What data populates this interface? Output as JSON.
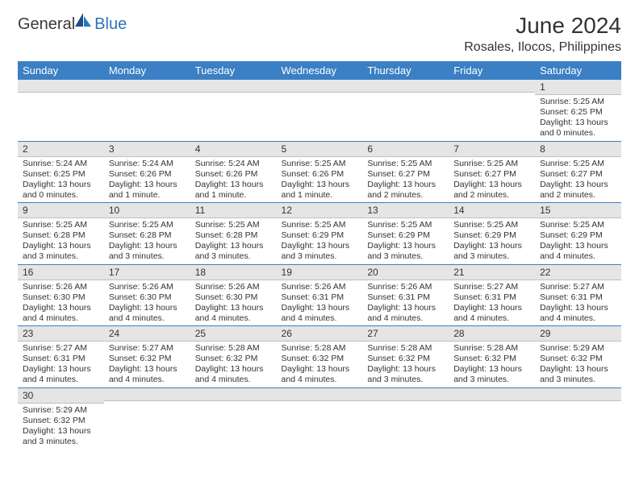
{
  "logo": {
    "part1": "General",
    "part2": "Blue"
  },
  "title": "June 2024",
  "location": "Rosales, Ilocos, Philippines",
  "header_bg": "#3b7fc4",
  "daynum_bg": "#e5e5e5",
  "border_color": "#3b7fc4",
  "weekdays": [
    "Sunday",
    "Monday",
    "Tuesday",
    "Wednesday",
    "Thursday",
    "Friday",
    "Saturday"
  ],
  "weeks": [
    [
      {
        "day": "",
        "sunrise": "",
        "sunset": "",
        "daylight": ""
      },
      {
        "day": "",
        "sunrise": "",
        "sunset": "",
        "daylight": ""
      },
      {
        "day": "",
        "sunrise": "",
        "sunset": "",
        "daylight": ""
      },
      {
        "day": "",
        "sunrise": "",
        "sunset": "",
        "daylight": ""
      },
      {
        "day": "",
        "sunrise": "",
        "sunset": "",
        "daylight": ""
      },
      {
        "day": "",
        "sunrise": "",
        "sunset": "",
        "daylight": ""
      },
      {
        "day": "1",
        "sunrise": "Sunrise: 5:25 AM",
        "sunset": "Sunset: 6:25 PM",
        "daylight": "Daylight: 13 hours and 0 minutes."
      }
    ],
    [
      {
        "day": "2",
        "sunrise": "Sunrise: 5:24 AM",
        "sunset": "Sunset: 6:25 PM",
        "daylight": "Daylight: 13 hours and 0 minutes."
      },
      {
        "day": "3",
        "sunrise": "Sunrise: 5:24 AM",
        "sunset": "Sunset: 6:26 PM",
        "daylight": "Daylight: 13 hours and 1 minute."
      },
      {
        "day": "4",
        "sunrise": "Sunrise: 5:24 AM",
        "sunset": "Sunset: 6:26 PM",
        "daylight": "Daylight: 13 hours and 1 minute."
      },
      {
        "day": "5",
        "sunrise": "Sunrise: 5:25 AM",
        "sunset": "Sunset: 6:26 PM",
        "daylight": "Daylight: 13 hours and 1 minute."
      },
      {
        "day": "6",
        "sunrise": "Sunrise: 5:25 AM",
        "sunset": "Sunset: 6:27 PM",
        "daylight": "Daylight: 13 hours and 2 minutes."
      },
      {
        "day": "7",
        "sunrise": "Sunrise: 5:25 AM",
        "sunset": "Sunset: 6:27 PM",
        "daylight": "Daylight: 13 hours and 2 minutes."
      },
      {
        "day": "8",
        "sunrise": "Sunrise: 5:25 AM",
        "sunset": "Sunset: 6:27 PM",
        "daylight": "Daylight: 13 hours and 2 minutes."
      }
    ],
    [
      {
        "day": "9",
        "sunrise": "Sunrise: 5:25 AM",
        "sunset": "Sunset: 6:28 PM",
        "daylight": "Daylight: 13 hours and 3 minutes."
      },
      {
        "day": "10",
        "sunrise": "Sunrise: 5:25 AM",
        "sunset": "Sunset: 6:28 PM",
        "daylight": "Daylight: 13 hours and 3 minutes."
      },
      {
        "day": "11",
        "sunrise": "Sunrise: 5:25 AM",
        "sunset": "Sunset: 6:28 PM",
        "daylight": "Daylight: 13 hours and 3 minutes."
      },
      {
        "day": "12",
        "sunrise": "Sunrise: 5:25 AM",
        "sunset": "Sunset: 6:29 PM",
        "daylight": "Daylight: 13 hours and 3 minutes."
      },
      {
        "day": "13",
        "sunrise": "Sunrise: 5:25 AM",
        "sunset": "Sunset: 6:29 PM",
        "daylight": "Daylight: 13 hours and 3 minutes."
      },
      {
        "day": "14",
        "sunrise": "Sunrise: 5:25 AM",
        "sunset": "Sunset: 6:29 PM",
        "daylight": "Daylight: 13 hours and 3 minutes."
      },
      {
        "day": "15",
        "sunrise": "Sunrise: 5:25 AM",
        "sunset": "Sunset: 6:29 PM",
        "daylight": "Daylight: 13 hours and 4 minutes."
      }
    ],
    [
      {
        "day": "16",
        "sunrise": "Sunrise: 5:26 AM",
        "sunset": "Sunset: 6:30 PM",
        "daylight": "Daylight: 13 hours and 4 minutes."
      },
      {
        "day": "17",
        "sunrise": "Sunrise: 5:26 AM",
        "sunset": "Sunset: 6:30 PM",
        "daylight": "Daylight: 13 hours and 4 minutes."
      },
      {
        "day": "18",
        "sunrise": "Sunrise: 5:26 AM",
        "sunset": "Sunset: 6:30 PM",
        "daylight": "Daylight: 13 hours and 4 minutes."
      },
      {
        "day": "19",
        "sunrise": "Sunrise: 5:26 AM",
        "sunset": "Sunset: 6:31 PM",
        "daylight": "Daylight: 13 hours and 4 minutes."
      },
      {
        "day": "20",
        "sunrise": "Sunrise: 5:26 AM",
        "sunset": "Sunset: 6:31 PM",
        "daylight": "Daylight: 13 hours and 4 minutes."
      },
      {
        "day": "21",
        "sunrise": "Sunrise: 5:27 AM",
        "sunset": "Sunset: 6:31 PM",
        "daylight": "Daylight: 13 hours and 4 minutes."
      },
      {
        "day": "22",
        "sunrise": "Sunrise: 5:27 AM",
        "sunset": "Sunset: 6:31 PM",
        "daylight": "Daylight: 13 hours and 4 minutes."
      }
    ],
    [
      {
        "day": "23",
        "sunrise": "Sunrise: 5:27 AM",
        "sunset": "Sunset: 6:31 PM",
        "daylight": "Daylight: 13 hours and 4 minutes."
      },
      {
        "day": "24",
        "sunrise": "Sunrise: 5:27 AM",
        "sunset": "Sunset: 6:32 PM",
        "daylight": "Daylight: 13 hours and 4 minutes."
      },
      {
        "day": "25",
        "sunrise": "Sunrise: 5:28 AM",
        "sunset": "Sunset: 6:32 PM",
        "daylight": "Daylight: 13 hours and 4 minutes."
      },
      {
        "day": "26",
        "sunrise": "Sunrise: 5:28 AM",
        "sunset": "Sunset: 6:32 PM",
        "daylight": "Daylight: 13 hours and 4 minutes."
      },
      {
        "day": "27",
        "sunrise": "Sunrise: 5:28 AM",
        "sunset": "Sunset: 6:32 PM",
        "daylight": "Daylight: 13 hours and 3 minutes."
      },
      {
        "day": "28",
        "sunrise": "Sunrise: 5:28 AM",
        "sunset": "Sunset: 6:32 PM",
        "daylight": "Daylight: 13 hours and 3 minutes."
      },
      {
        "day": "29",
        "sunrise": "Sunrise: 5:29 AM",
        "sunset": "Sunset: 6:32 PM",
        "daylight": "Daylight: 13 hours and 3 minutes."
      }
    ],
    [
      {
        "day": "30",
        "sunrise": "Sunrise: 5:29 AM",
        "sunset": "Sunset: 6:32 PM",
        "daylight": "Daylight: 13 hours and 3 minutes."
      },
      {
        "day": "",
        "sunrise": "",
        "sunset": "",
        "daylight": ""
      },
      {
        "day": "",
        "sunrise": "",
        "sunset": "",
        "daylight": ""
      },
      {
        "day": "",
        "sunrise": "",
        "sunset": "",
        "daylight": ""
      },
      {
        "day": "",
        "sunrise": "",
        "sunset": "",
        "daylight": ""
      },
      {
        "day": "",
        "sunrise": "",
        "sunset": "",
        "daylight": ""
      },
      {
        "day": "",
        "sunrise": "",
        "sunset": "",
        "daylight": ""
      }
    ]
  ]
}
